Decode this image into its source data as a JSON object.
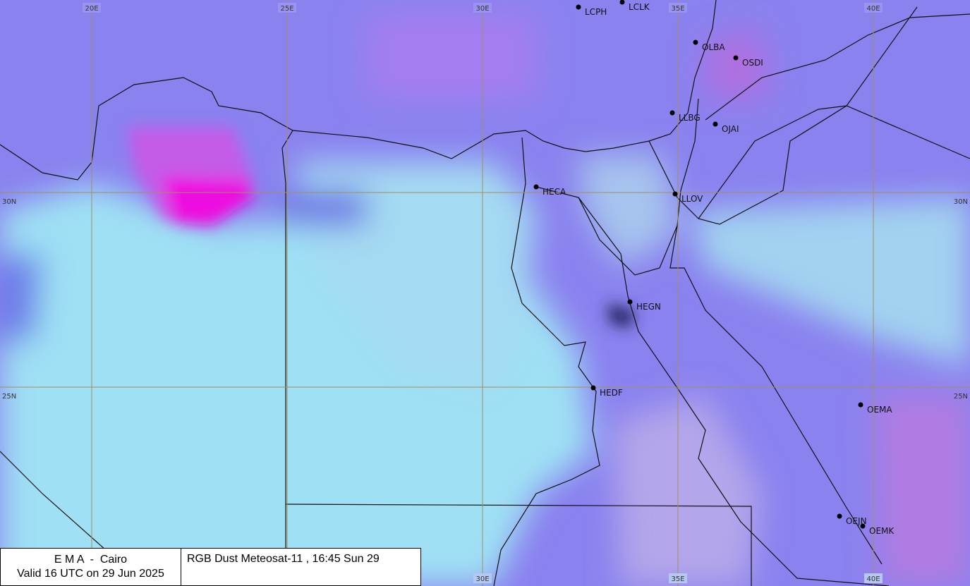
{
  "grid": {
    "longitudes": [
      "20E",
      "25E",
      "30E",
      "35E",
      "40E"
    ],
    "latitudes": [
      "30N",
      "25N"
    ]
  },
  "stations": [
    "LCPH",
    "LCLK",
    "OLBA",
    "OSDI",
    "LLBG",
    "OJAI",
    "HECA",
    "LLOV",
    "HEGN",
    "HEDF",
    "OEMA",
    "OEJN",
    "OEMK"
  ],
  "info": {
    "agency": "E M A  -  Cairo",
    "valid": "Valid 16 UTC on 29 Jun 2025",
    "product": "RGB Dust Meteosat-11 , 16:45  Sun 29"
  }
}
